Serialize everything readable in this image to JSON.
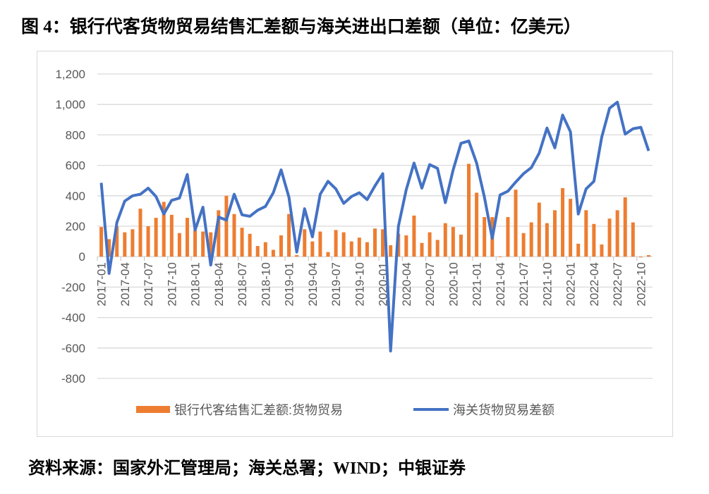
{
  "title": "图 4：银行代客货物贸易结售汇差额与海关进出口差额（单位：亿美元）",
  "footer": "资料来源：国家外汇管理局；海关总署；WIND；中银证券",
  "chart_data": {
    "type": "bar+line",
    "ylim": [
      -800,
      1200
    ],
    "yticks": [
      -800,
      -600,
      -400,
      -200,
      0,
      200,
      400,
      600,
      800,
      1000,
      1200
    ],
    "ytick_labels": [
      "-800",
      "-600",
      "-400",
      "-200",
      "0",
      "200",
      "400",
      "600",
      "800",
      "1,000",
      "1,200"
    ],
    "grid": true,
    "legend": "bottom",
    "x": [
      "2017-01",
      "2017-02",
      "2017-03",
      "2017-04",
      "2017-05",
      "2017-06",
      "2017-07",
      "2017-08",
      "2017-09",
      "2017-10",
      "2017-11",
      "2017-12",
      "2018-01",
      "2018-02",
      "2018-03",
      "2018-04",
      "2018-05",
      "2018-06",
      "2018-07",
      "2018-08",
      "2018-09",
      "2018-10",
      "2018-11",
      "2018-12",
      "2019-01",
      "2019-02",
      "2019-03",
      "2019-04",
      "2019-05",
      "2019-06",
      "2019-07",
      "2019-08",
      "2019-09",
      "2019-10",
      "2019-11",
      "2019-12",
      "2020-01",
      "2020-02",
      "2020-03",
      "2020-04",
      "2020-05",
      "2020-06",
      "2020-07",
      "2020-08",
      "2020-09",
      "2020-10",
      "2020-11",
      "2020-12",
      "2021-01",
      "2021-02",
      "2021-03",
      "2021-04",
      "2021-05",
      "2021-06",
      "2021-07",
      "2021-08",
      "2021-09",
      "2021-10",
      "2021-11",
      "2021-12",
      "2022-01",
      "2022-02",
      "2022-03",
      "2022-04",
      "2022-05",
      "2022-06",
      "2022-07",
      "2022-08",
      "2022-09",
      "2022-10",
      "2022-11"
    ],
    "xtick_labels": [
      "2017-01",
      "2017-04",
      "2017-07",
      "2017-10",
      "2018-01",
      "2018-04",
      "2018-07",
      "2018-10",
      "2019-01",
      "2019-04",
      "2019-07",
      "2019-10",
      "2020-01",
      "2020-04",
      "2020-07",
      "2020-10",
      "2021-01",
      "2021-04",
      "2021-07",
      "2021-10",
      "2022-01",
      "2022-04",
      "2022-07",
      "2022-10"
    ],
    "series": [
      {
        "name": "银行代客结售汇差额:货物贸易",
        "type": "bar",
        "color": "#ED7D31",
        "values": [
          195,
          115,
          200,
          160,
          180,
          315,
          200,
          255,
          360,
          275,
          155,
          255,
          175,
          165,
          160,
          305,
          400,
          280,
          190,
          150,
          70,
          95,
          45,
          140,
          280,
          10,
          180,
          100,
          165,
          30,
          175,
          160,
          100,
          125,
          95,
          185,
          180,
          75,
          150,
          140,
          270,
          90,
          160,
          110,
          220,
          195,
          145,
          610,
          420,
          260,
          260,
          0,
          260,
          440,
          155,
          225,
          355,
          220,
          305,
          450,
          380,
          85,
          305,
          215,
          80,
          250,
          305,
          390,
          225,
          -5,
          10
        ]
      },
      {
        "name": "海关货物贸易差额",
        "type": "line",
        "color": "#4472C4",
        "values": [
          485,
          -110,
          225,
          365,
          400,
          410,
          450,
          395,
          280,
          370,
          385,
          540,
          175,
          325,
          -55,
          260,
          240,
          410,
          275,
          265,
          305,
          330,
          420,
          570,
          390,
          30,
          315,
          130,
          410,
          495,
          445,
          350,
          395,
          420,
          375,
          465,
          545,
          -620,
          200,
          440,
          615,
          450,
          605,
          580,
          355,
          570,
          745,
          760,
          615,
          390,
          120,
          405,
          430,
          490,
          545,
          585,
          680,
          845,
          715,
          930,
          820,
          280,
          445,
          495,
          785,
          975,
          1015,
          805,
          840,
          850,
          695
        ]
      }
    ]
  }
}
